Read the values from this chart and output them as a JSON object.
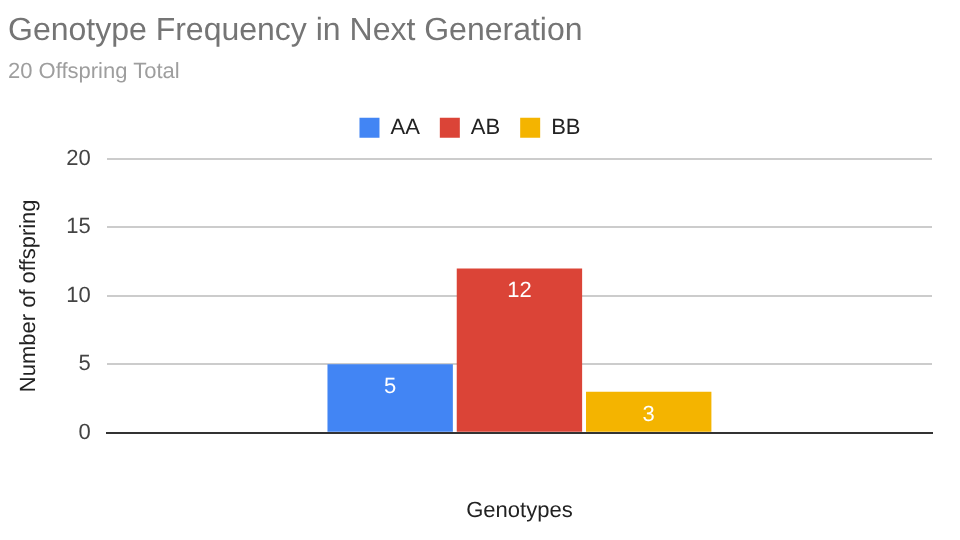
{
  "chart_data": {
    "type": "bar",
    "title": "Genotype Frequency in Next Generation",
    "subtitle": "20 Offspring Total",
    "xlabel": "Genotypes",
    "ylabel": "Number of offspring",
    "categories": [
      null
    ],
    "series": [
      {
        "name": "AA",
        "color": "#4285f4",
        "values": [
          5
        ]
      },
      {
        "name": "AB",
        "color": "#db4437",
        "values": [
          12
        ]
      },
      {
        "name": "BB",
        "color": "#f4b400",
        "values": [
          3
        ]
      }
    ],
    "ylim": [
      0,
      20
    ],
    "yticks": [
      0,
      5,
      10,
      15,
      20
    ],
    "grid": "y",
    "legend": "top",
    "data_labels": true
  }
}
